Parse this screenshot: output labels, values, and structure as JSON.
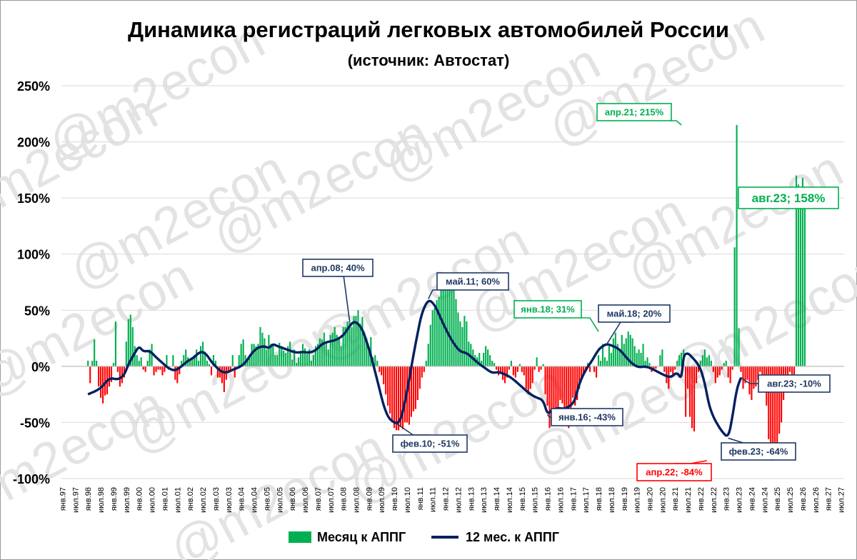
{
  "chart_data": {
    "type": "bar+line",
    "title": "Динамика регистраций легковых автомобилей России",
    "subtitle": "(источник: Автостат)",
    "watermark": "@m2econ",
    "ylim": [
      -100,
      250
    ],
    "yticks": [
      "-100%",
      "-50%",
      "0%",
      "50%",
      "100%",
      "150%",
      "200%",
      "250%"
    ],
    "ytick_values": [
      -100,
      -50,
      0,
      50,
      100,
      150,
      200,
      250
    ],
    "grid": true,
    "legend_position": "bottom",
    "x_axis": {
      "start": "1997-01",
      "end": "2027-07",
      "tick_step_months": 6,
      "tick_labels": [
        "янв.97",
        "июл.97",
        "янв.98",
        "июл.98",
        "янв.99",
        "июл.99",
        "янв.00",
        "июл.00",
        "янв.01",
        "июл.01",
        "янв.02",
        "июл.02",
        "янв.03",
        "июл.03",
        "янв.04",
        "июл.04",
        "янв.05",
        "июл.05",
        "янв.06",
        "июл.06",
        "янв.07",
        "июл.07",
        "янв.08",
        "июл.08",
        "янв.09",
        "июл.09",
        "янв.10",
        "июл.10",
        "янв.11",
        "июл.11",
        "янв.12",
        "июл.12",
        "янв.13",
        "июл.13",
        "янв.14",
        "июл.14",
        "янв.15",
        "июл.15",
        "янв.16",
        "июл.16",
        "янв.17",
        "июл.17",
        "янв.18",
        "июл.18",
        "янв.19",
        "июл.19",
        "янв.20",
        "июл.20",
        "янв.21",
        "июл.21",
        "янв.22",
        "июл.22",
        "янв.23",
        "июл.23",
        "янв.24",
        "июл.24",
        "янв.25",
        "июл.25",
        "янв.26",
        "июл.26",
        "янв.27",
        "июл.27"
      ]
    },
    "colors": {
      "positive_bar": "#00b050",
      "negative_bar": "#ff0000",
      "line": "#002060",
      "green_label": "#00b050",
      "red_label": "#ff0000",
      "navy_label": "#1f3864"
    },
    "series": [
      {
        "name": "Месяц к АППГ",
        "kind": "bar",
        "x_start": "1998-01",
        "values": [
          5,
          -15,
          5,
          24,
          5,
          -18,
          -28,
          -33,
          -26,
          -25,
          -18,
          -14,
          3,
          40,
          -5,
          -18,
          -15,
          -10,
          22,
          42,
          46,
          35,
          18,
          10,
          5,
          8,
          -3,
          -5,
          5,
          15,
          20,
          -8,
          -5,
          -3,
          -3,
          -8,
          -5,
          10,
          -3,
          0,
          10,
          -12,
          -15,
          -7,
          5,
          10,
          15,
          8,
          5,
          6,
          10,
          15,
          5,
          18,
          22,
          13,
          5,
          2,
          -8,
          10,
          5,
          -10,
          -10,
          -15,
          -23,
          -12,
          -5,
          -3,
          10,
          -10,
          0,
          10,
          20,
          24,
          10,
          6,
          8,
          20,
          20,
          18,
          20,
          35,
          30,
          25,
          15,
          28,
          20,
          18,
          10,
          10,
          21,
          18,
          14,
          12,
          18,
          22,
          6,
          15,
          3,
          8,
          12,
          20,
          16,
          11,
          15,
          5,
          10,
          18,
          20,
          25,
          24,
          30,
          20,
          15,
          28,
          30,
          35,
          28,
          25,
          18,
          35,
          35,
          40,
          40,
          35,
          45,
          45,
          50,
          38,
          44,
          30,
          25,
          16,
          26,
          8,
          10,
          5,
          -5,
          -8,
          -16,
          -25,
          -35,
          -42,
          -48,
          -55,
          -57,
          -57,
          -54,
          -56,
          -50,
          -50,
          -52,
          -45,
          -40,
          -38,
          -30,
          -20,
          -10,
          -5,
          5,
          20,
          37,
          50,
          52,
          59,
          62,
          70,
          82,
          81,
          72,
          82,
          78,
          80,
          60,
          48,
          40,
          35,
          45,
          40,
          22,
          20,
          15,
          10,
          8,
          12,
          5,
          12,
          18,
          15,
          10,
          5,
          3,
          -3,
          -8,
          -5,
          -12,
          -15,
          -10,
          -3,
          5,
          -8,
          -10,
          -5,
          2,
          -5,
          -8,
          -20,
          -25,
          -20,
          -15,
          -3,
          8,
          -5,
          -3,
          2,
          -25,
          -35,
          -55,
          -50,
          -50,
          -45,
          -40,
          -30,
          -33,
          -42,
          -38,
          -55,
          -48,
          -28,
          -35,
          -30,
          -20,
          -10,
          -8,
          -5,
          3,
          -5,
          0,
          -5,
          -10,
          10,
          5,
          20,
          8,
          5,
          18,
          12,
          25,
          30,
          20,
          15,
          28,
          20,
          25,
          31,
          28,
          25,
          18,
          12,
          15,
          12,
          20,
          5,
          8,
          3,
          -5,
          -3,
          -2,
          0,
          10,
          15,
          -5,
          -15,
          -20,
          -5,
          -8,
          -3,
          5,
          10,
          12,
          15,
          -45,
          -20,
          -45,
          -55,
          -58,
          -15,
          -5,
          5,
          10,
          15,
          8,
          10,
          5,
          -5,
          -15,
          -10,
          -8,
          -3,
          3,
          5,
          -10,
          -15,
          -3,
          106,
          215,
          34,
          -5,
          -20,
          -15,
          -12,
          -25,
          -30,
          -20,
          -18,
          -12,
          -5,
          -15,
          -20,
          -35,
          -65,
          -80,
          -84,
          -75,
          -70,
          -60,
          -50,
          -30,
          -15,
          -8,
          -5,
          -8,
          -10,
          170,
          162,
          152,
          168,
          158
        ]
      },
      {
        "name": "12 мес. к АППГ",
        "kind": "line",
        "points": [
          [
            "1998-01",
            -25
          ],
          [
            "1998-07",
            -20
          ],
          [
            "1998-11",
            -10
          ],
          [
            "1999-03",
            -12
          ],
          [
            "1999-06",
            -8
          ],
          [
            "1999-08",
            2
          ],
          [
            "1999-11",
            12
          ],
          [
            "2000-01",
            18
          ],
          [
            "2000-03",
            13
          ],
          [
            "2000-06",
            14
          ],
          [
            "2000-09",
            8
          ],
          [
            "2000-12",
            3
          ],
          [
            "2001-03",
            -2
          ],
          [
            "2001-06",
            -4
          ],
          [
            "2001-09",
            0
          ],
          [
            "2001-12",
            5
          ],
          [
            "2002-03",
            8
          ],
          [
            "2002-05",
            12
          ],
          [
            "2002-07",
            13
          ],
          [
            "2002-09",
            10
          ],
          [
            "2002-11",
            4
          ],
          [
            "2003-01",
            0
          ],
          [
            "2003-03",
            -4
          ],
          [
            "2003-06",
            -6
          ],
          [
            "2003-09",
            -3
          ],
          [
            "2003-12",
            -1
          ],
          [
            "2004-03",
            3
          ],
          [
            "2004-06",
            12
          ],
          [
            "2004-09",
            17
          ],
          [
            "2004-12",
            18
          ],
          [
            "2005-02",
            16
          ],
          [
            "2005-04",
            20
          ],
          [
            "2005-06",
            18
          ],
          [
            "2005-09",
            16
          ],
          [
            "2005-12",
            14
          ],
          [
            "2006-03",
            12
          ],
          [
            "2006-06",
            13
          ],
          [
            "2006-09",
            12
          ],
          [
            "2006-12",
            14
          ],
          [
            "2007-03",
            20
          ],
          [
            "2007-06",
            22
          ],
          [
            "2007-09",
            23
          ],
          [
            "2007-12",
            26
          ],
          [
            "2008-02",
            30
          ],
          [
            "2008-04",
            36
          ],
          [
            "2008-06",
            40
          ],
          [
            "2008-08",
            38
          ],
          [
            "2008-10",
            33
          ],
          [
            "2008-12",
            22
          ],
          [
            "2009-02",
            10
          ],
          [
            "2009-04",
            -5
          ],
          [
            "2009-06",
            -20
          ],
          [
            "2009-08",
            -35
          ],
          [
            "2009-10",
            -45
          ],
          [
            "2009-12",
            -49
          ],
          [
            "2010-02",
            -51
          ],
          [
            "2010-04",
            -48
          ],
          [
            "2010-06",
            -32
          ],
          [
            "2010-08",
            -12
          ],
          [
            "2010-10",
            10
          ],
          [
            "2010-12",
            30
          ],
          [
            "2011-02",
            48
          ],
          [
            "2011-05",
            60
          ],
          [
            "2011-08",
            55
          ],
          [
            "2011-11",
            42
          ],
          [
            "2012-02",
            30
          ],
          [
            "2012-05",
            20
          ],
          [
            "2012-08",
            13
          ],
          [
            "2012-11",
            12
          ],
          [
            "2013-02",
            7
          ],
          [
            "2013-05",
            2
          ],
          [
            "2013-08",
            -2
          ],
          [
            "2013-11",
            -6
          ],
          [
            "2014-02",
            -5
          ],
          [
            "2014-05",
            -7
          ],
          [
            "2014-08",
            -10
          ],
          [
            "2014-11",
            -15
          ],
          [
            "2015-02",
            -20
          ],
          [
            "2015-05",
            -25
          ],
          [
            "2015-08",
            -28
          ],
          [
            "2015-11",
            -30
          ],
          [
            "2016-01",
            -43
          ],
          [
            "2016-03",
            -39
          ],
          [
            "2016-06",
            -37
          ],
          [
            "2016-09",
            -38
          ],
          [
            "2016-12",
            -35
          ],
          [
            "2017-02",
            -30
          ],
          [
            "2017-04",
            -15
          ],
          [
            "2017-07",
            -3
          ],
          [
            "2017-10",
            5
          ],
          [
            "2018-01",
            15
          ],
          [
            "2018-03",
            18
          ],
          [
            "2018-05",
            20
          ],
          [
            "2018-08",
            18
          ],
          [
            "2018-11",
            15
          ],
          [
            "2019-02",
            8
          ],
          [
            "2019-05",
            2
          ],
          [
            "2019-08",
            -1
          ],
          [
            "2019-11",
            0
          ],
          [
            "2020-02",
            -2
          ],
          [
            "2020-05",
            -5
          ],
          [
            "2020-08",
            -8
          ],
          [
            "2020-11",
            -10
          ],
          [
            "2021-02",
            -5
          ],
          [
            "2021-04",
            -12
          ],
          [
            "2021-05",
            10
          ],
          [
            "2021-07",
            12
          ],
          [
            "2021-09",
            8
          ],
          [
            "2021-11",
            4
          ],
          [
            "2022-01",
            -2
          ],
          [
            "2022-03",
            -15
          ],
          [
            "2022-05",
            -35
          ],
          [
            "2022-07",
            -45
          ],
          [
            "2022-09",
            -52
          ],
          [
            "2022-11",
            -58
          ],
          [
            "2023-02",
            -64
          ],
          [
            "2023-04",
            -45
          ],
          [
            "2023-06",
            -20
          ],
          [
            "2023-08",
            -10
          ]
        ]
      }
    ],
    "annotations": [
      {
        "text": "апр.21; 215%",
        "series": "Месяц к АППГ",
        "x": "2021-04",
        "y": 215,
        "style": "green"
      },
      {
        "text": "авг.23; 158%",
        "series": "Месяц к АППГ",
        "x": "2023-08",
        "y": 158,
        "style": "green-large"
      },
      {
        "text": "янв.18; 31%",
        "series": "Месяц к АППГ",
        "x": "2018-01",
        "y": 31,
        "style": "green"
      },
      {
        "text": "апр.22; -84%",
        "series": "Месяц к АППГ",
        "x": "2022-04",
        "y": -84,
        "style": "red"
      },
      {
        "text": "апр.08; 40%",
        "series": "12 мес. к АППГ",
        "x": "2008-04",
        "y": 40,
        "style": "navy"
      },
      {
        "text": "май.11; 60%",
        "series": "12 мес. к АППГ",
        "x": "2011-05",
        "y": 60,
        "style": "navy"
      },
      {
        "text": "май.18; 20%",
        "series": "12 мес. к АППГ",
        "x": "2018-05",
        "y": 20,
        "style": "navy"
      },
      {
        "text": "фев.10; -51%",
        "series": "12 мес. к АППГ",
        "x": "2010-02",
        "y": -51,
        "style": "navy"
      },
      {
        "text": "янв.16; -43%",
        "series": "12 мес. к АППГ",
        "x": "2016-01",
        "y": -43,
        "style": "navy"
      },
      {
        "text": "фев.23; -64%",
        "series": "12 мес. к АППГ",
        "x": "2023-02",
        "y": -64,
        "style": "navy"
      },
      {
        "text": "авг.23; -10%",
        "series": "12 мес. к АППГ",
        "x": "2023-08",
        "y": -10,
        "style": "navy"
      }
    ]
  }
}
